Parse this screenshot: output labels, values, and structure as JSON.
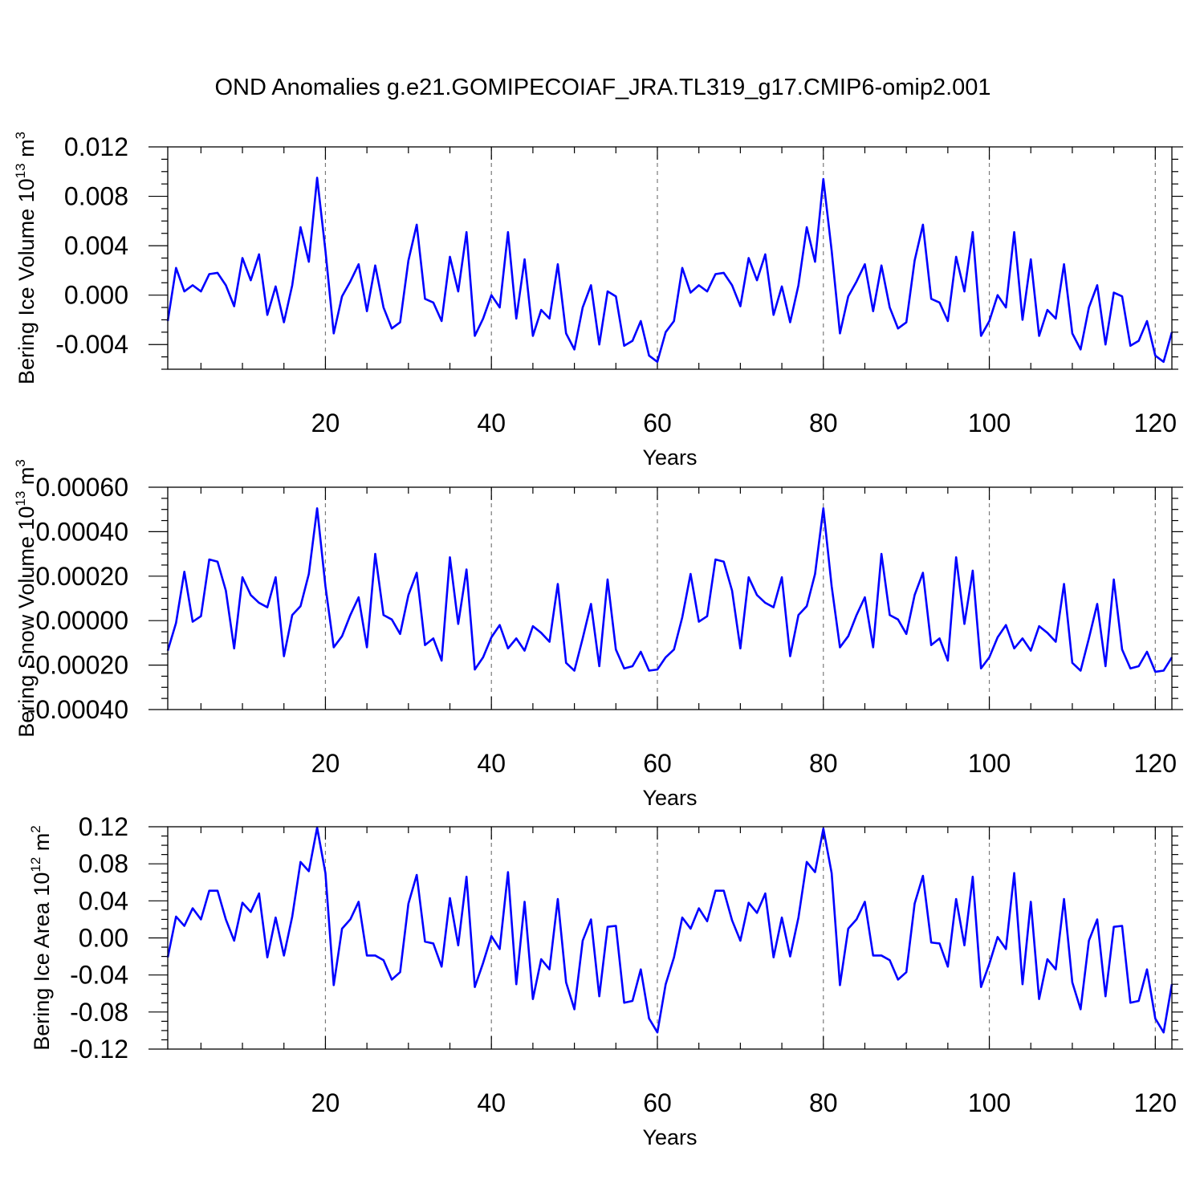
{
  "title": "OND Anomalies g.e21.GOMIPECOIAF_JRA.TL319_g17.CMIP6-omip2.001",
  "line_color": "#0000ff",
  "chart_data": [
    {
      "type": "line",
      "ylabel": "Bering Ice Volume 10",
      "ylabel_exp": "13",
      "ylabel_unit": " m",
      "ylabel_unit_exp": "3",
      "xlabel": "Years",
      "xlim": [
        1,
        122
      ],
      "ylim": [
        -0.006,
        0.012
      ],
      "xticks": [
        20,
        40,
        60,
        80,
        100,
        120
      ],
      "xtick_labels": [
        "20",
        "40",
        "60",
        "80",
        "100",
        "120"
      ],
      "yticks": [
        -0.004,
        0.0,
        0.004,
        0.008,
        0.012
      ],
      "ytick_labels": [
        "-0.004",
        "0.000",
        "0.004",
        "0.008",
        "0.012"
      ],
      "grid": "dashed vertical",
      "values": [
        -0.0021,
        0.0022,
        0.0003,
        0.0008,
        0.0003,
        0.0017,
        0.0018,
        0.0008,
        -0.0009,
        0.003,
        0.0012,
        0.0033,
        -0.0016,
        0.0007,
        -0.0022,
        0.0008,
        0.0055,
        0.0027,
        0.0095,
        0.0036,
        -0.0031,
        -0.0001,
        0.0011,
        0.0025,
        -0.0013,
        0.0024,
        -0.001,
        -0.0027,
        -0.0022,
        0.0028,
        0.0057,
        -0.0003,
        -0.0006,
        -0.0021,
        0.0031,
        0.0003,
        0.0051,
        -0.0033,
        -0.0019,
        0.0,
        -0.001,
        0.0051,
        -0.0019,
        0.0029,
        -0.0033,
        -0.0012,
        -0.0019,
        0.0025,
        -0.0031,
        -0.0044,
        -0.001,
        0.0008,
        -0.004,
        0.0003,
        -0.0001,
        -0.0041,
        -0.0037,
        -0.0021,
        -0.0049,
        -0.0054,
        -0.003,
        -0.0021,
        0.0022,
        0.0002,
        0.0008,
        0.0003,
        0.0017,
        0.0018,
        0.0008,
        -0.0009,
        0.003,
        0.0012,
        0.0033,
        -0.0016,
        0.0007,
        -0.0022,
        0.0008,
        0.0055,
        0.0027,
        0.0094,
        0.0036,
        -0.0031,
        -0.0001,
        0.0011,
        0.0025,
        -0.0013,
        0.0024,
        -0.001,
        -0.0027,
        -0.0022,
        0.0028,
        0.0057,
        -0.0003,
        -0.0006,
        -0.0021,
        0.0031,
        0.0003,
        0.0051,
        -0.0033,
        -0.0021,
        0.0,
        -0.001,
        0.0051,
        -0.002,
        0.0029,
        -0.0033,
        -0.0012,
        -0.0019,
        0.0025,
        -0.0031,
        -0.0044,
        -0.001,
        0.0008,
        -0.004,
        0.0002,
        -0.0001,
        -0.0041,
        -0.0037,
        -0.0021,
        -0.0049,
        -0.0054,
        -0.003
      ]
    },
    {
      "type": "line",
      "ylabel": "Bering Snow Volume 10",
      "ylabel_exp": "13",
      "ylabel_unit": " m",
      "ylabel_unit_exp": "3",
      "xlabel": "Years",
      "xlim": [
        1,
        122
      ],
      "ylim": [
        -0.0004,
        0.0006
      ],
      "xticks": [
        20,
        40,
        60,
        80,
        100,
        120
      ],
      "xtick_labels": [
        "20",
        "40",
        "60",
        "80",
        "100",
        "120"
      ],
      "yticks": [
        -0.0004,
        -0.0002,
        0.0,
        0.0002,
        0.0004,
        0.0006
      ],
      "ytick_labels": [
        "-0.00040",
        "-0.00020",
        "0.00000",
        "0.00020",
        "0.00040",
        "0.00060"
      ],
      "grid": "dashed vertical",
      "values": [
        -0.000135,
        -1e-05,
        0.00022,
        -5e-06,
        2e-05,
        0.000275,
        0.000265,
        0.000135,
        -0.000125,
        0.000195,
        0.000115,
        8e-05,
        6e-05,
        0.000195,
        -0.00016,
        2.5e-05,
        6.5e-05,
        0.00021,
        0.000505,
        0.000155,
        -0.00012,
        -7e-05,
        2.5e-05,
        0.000105,
        -0.00012,
        0.0003,
        2.5e-05,
        5e-06,
        -6e-05,
        0.000115,
        0.000215,
        -0.00011,
        -8e-05,
        -0.00018,
        0.000285,
        -1.5e-05,
        0.00023,
        -0.00022,
        -0.000165,
        -7.5e-05,
        -2e-05,
        -0.000125,
        -8e-05,
        -0.000135,
        -2.5e-05,
        -5.5e-05,
        -9.5e-05,
        0.000165,
        -0.00019,
        -0.000225,
        -8e-05,
        7.5e-05,
        -0.000205,
        0.000185,
        -0.00013,
        -0.000215,
        -0.000205,
        -0.00014,
        -0.000225,
        -0.00022,
        -0.000165,
        -0.00013,
        1.5e-05,
        0.00021,
        -5e-06,
        2e-05,
        0.000275,
        0.000265,
        0.000135,
        -0.000125,
        0.000195,
        0.000115,
        8e-05,
        6e-05,
        0.000195,
        -0.00016,
        2.5e-05,
        6.5e-05,
        0.00021,
        0.000505,
        0.000155,
        -0.00012,
        -7e-05,
        2.5e-05,
        0.000105,
        -0.00012,
        0.0003,
        2.5e-05,
        5e-06,
        -6e-05,
        0.000115,
        0.000215,
        -0.00011,
        -8e-05,
        -0.00018,
        0.000285,
        -1.5e-05,
        0.000225,
        -0.000215,
        -0.000165,
        -7.5e-05,
        -2e-05,
        -0.000125,
        -8e-05,
        -0.000135,
        -2.5e-05,
        -5.5e-05,
        -9.5e-05,
        0.000165,
        -0.00019,
        -0.000225,
        -8e-05,
        7.5e-05,
        -0.000205,
        0.000185,
        -0.00013,
        -0.000215,
        -0.000205,
        -0.00014,
        -0.00023,
        -0.000225,
        -0.000165
      ]
    },
    {
      "type": "line",
      "ylabel": "Bering Ice Area 10",
      "ylabel_exp": "12",
      "ylabel_unit": " m",
      "ylabel_unit_exp": "2",
      "xlabel": "Years",
      "xlim": [
        1,
        122
      ],
      "ylim": [
        -0.12,
        0.12
      ],
      "xticks": [
        20,
        40,
        60,
        80,
        100,
        120
      ],
      "xtick_labels": [
        "20",
        "40",
        "60",
        "80",
        "100",
        "120"
      ],
      "yticks": [
        -0.12,
        -0.08,
        -0.04,
        0.0,
        0.04,
        0.08,
        0.12
      ],
      "ytick_labels": [
        "-0.12",
        "-0.08",
        "-0.04",
        "0.00",
        "0.04",
        "0.08",
        "0.12"
      ],
      "grid": "dashed vertical",
      "values": [
        -0.021,
        0.023,
        0.013,
        0.032,
        0.02,
        0.051,
        0.051,
        0.02,
        -0.003,
        0.038,
        0.028,
        0.048,
        -0.021,
        0.022,
        -0.019,
        0.023,
        0.082,
        0.072,
        0.119,
        0.07,
        -0.051,
        0.01,
        0.02,
        0.039,
        -0.019,
        -0.019,
        -0.024,
        -0.045,
        -0.037,
        0.037,
        0.068,
        -0.004,
        -0.006,
        -0.031,
        0.043,
        -0.008,
        0.066,
        -0.053,
        -0.027,
        0.002,
        -0.012,
        0.071,
        -0.05,
        0.039,
        -0.066,
        -0.023,
        -0.034,
        0.042,
        -0.048,
        -0.077,
        -0.003,
        0.02,
        -0.063,
        0.012,
        0.013,
        -0.07,
        -0.068,
        -0.034,
        -0.087,
        -0.102,
        -0.05,
        -0.021,
        0.022,
        0.01,
        0.032,
        0.018,
        0.051,
        0.051,
        0.019,
        -0.003,
        0.038,
        0.027,
        0.048,
        -0.021,
        0.022,
        -0.02,
        0.022,
        0.082,
        0.071,
        0.118,
        0.07,
        -0.051,
        0.01,
        0.02,
        0.039,
        -0.019,
        -0.019,
        -0.024,
        -0.045,
        -0.037,
        0.037,
        0.067,
        -0.005,
        -0.006,
        -0.031,
        0.042,
        -0.008,
        0.066,
        -0.053,
        -0.028,
        0.001,
        -0.012,
        0.07,
        -0.05,
        0.039,
        -0.066,
        -0.023,
        -0.034,
        0.042,
        -0.048,
        -0.077,
        -0.003,
        0.02,
        -0.063,
        0.012,
        0.013,
        -0.07,
        -0.068,
        -0.034,
        -0.087,
        -0.102,
        -0.05
      ]
    }
  ]
}
